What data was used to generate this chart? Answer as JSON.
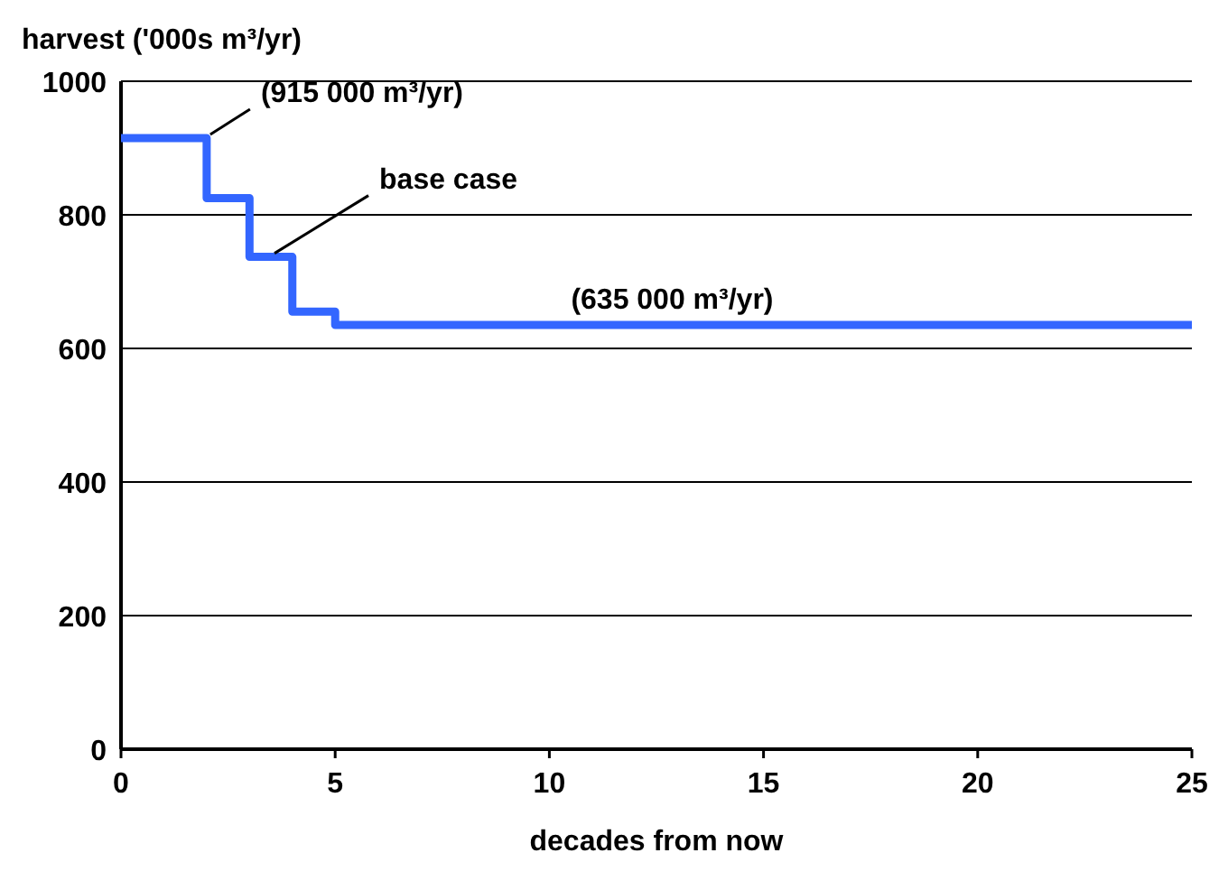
{
  "chart_data": {
    "type": "step",
    "ylabel": "harvest ('000s m³/yr)",
    "xlabel": "decades from now",
    "x": [
      0,
      2,
      3,
      4,
      5,
      25
    ],
    "series": [
      {
        "color": "#3366ff",
        "values": [
          915,
          825,
          737,
          655,
          635,
          635
        ]
      }
    ],
    "xlim": [
      0,
      25
    ],
    "xticks": [
      0,
      5,
      10,
      15,
      20,
      25
    ],
    "ylim": [
      0,
      1000
    ],
    "yticks": [
      0,
      200,
      400,
      600,
      800,
      1000
    ],
    "grid": "y",
    "annotations": [
      {
        "text": "(915 000 m³/yr)",
        "x": 2,
        "y": 915
      },
      {
        "text": "base case",
        "x": 3.5,
        "y": 737
      },
      {
        "text": "(635 000 m³/yr)",
        "x": 10,
        "y": 635
      }
    ]
  }
}
